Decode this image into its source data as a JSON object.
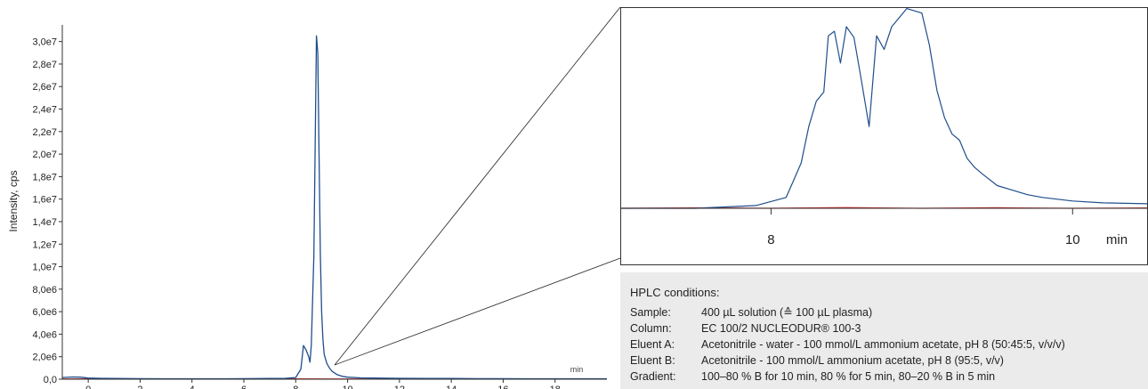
{
  "chart_data": [
    {
      "type": "line",
      "ylabel": "Intensity, cps",
      "xlabel": "",
      "x_unit_label": "min",
      "xlim": [
        -1,
        20
      ],
      "ylim": [
        0,
        31000000
      ],
      "x_ticks": [
        0,
        2,
        4,
        6,
        8,
        10,
        12,
        14,
        16,
        18
      ],
      "y_tick_labels": [
        "0,0",
        "2,0e6",
        "4,0e6",
        "6,0e6",
        "8,0e6",
        "1,0e7",
        "1,2e7",
        "1,4e7",
        "1,6e7",
        "1,8e7",
        "2,0e7",
        "2,2e7",
        "2,4e7",
        "2,6e7",
        "2,8e7",
        "3,0e7"
      ],
      "y_tick_values": [
        0,
        2000000,
        4000000,
        6000000,
        8000000,
        10000000,
        12000000,
        14000000,
        16000000,
        18000000,
        20000000,
        22000000,
        24000000,
        26000000,
        28000000,
        30000000
      ],
      "series": [
        {
          "color": "#1f4e8c",
          "x": [
            -1,
            -0.6,
            -0.3,
            0,
            0.5,
            1,
            2,
            3,
            4,
            5,
            6,
            7,
            7.6,
            8.0,
            8.2,
            8.3,
            8.4,
            8.5,
            8.55,
            8.6,
            8.7,
            8.8,
            8.85,
            8.9,
            8.95,
            9.0,
            9.05,
            9.1,
            9.2,
            9.3,
            9.4,
            9.6,
            9.8,
            10,
            10.5,
            11,
            12,
            13,
            14,
            15,
            16,
            17,
            18,
            19,
            20
          ],
          "y": [
            150000,
            200000,
            180000,
            100000,
            80000,
            60000,
            50000,
            40000,
            40000,
            40000,
            50000,
            60000,
            80000,
            150000,
            900000,
            3000000,
            2600000,
            2000000,
            1500000,
            3000000,
            11000000,
            30500000,
            29000000,
            20000000,
            11000000,
            6000000,
            3500000,
            2200000,
            1400000,
            1000000,
            700000,
            400000,
            250000,
            180000,
            120000,
            100000,
            80000,
            70000,
            60000,
            50000,
            50000,
            40000,
            40000,
            40000,
            40000
          ]
        },
        {
          "color": "#d62728",
          "x": [
            -1,
            0,
            2,
            4,
            6,
            8,
            10,
            12,
            14,
            16,
            18,
            20
          ],
          "y": [
            20000,
            30000,
            20000,
            25000,
            20000,
            30000,
            25000,
            20000,
            25000,
            20000,
            25000,
            20000
          ]
        }
      ]
    },
    {
      "type": "line",
      "xlabel": "",
      "x_unit_label": "min",
      "xlim": [
        7.0,
        10.5
      ],
      "x_ticks": [
        8,
        10
      ],
      "series": [
        {
          "color": "#1f4e8c",
          "x": [
            7.0,
            7.5,
            7.9,
            8.1,
            8.2,
            8.25,
            8.3,
            8.35,
            8.38,
            8.42,
            8.46,
            8.5,
            8.55,
            8.6,
            8.65,
            8.7,
            8.75,
            8.8,
            8.9,
            9.0,
            9.05,
            9.1,
            9.15,
            9.2,
            9.25,
            9.3,
            9.35,
            9.4,
            9.5,
            9.6,
            9.7,
            9.8,
            10.0,
            10.2,
            10.5
          ],
          "y": [
            0,
            0,
            3,
            12,
            50,
            90,
            118,
            128,
            190,
            195,
            160,
            200,
            188,
            140,
            90,
            190,
            175,
            200,
            220,
            215,
            180,
            130,
            100,
            82,
            75,
            55,
            45,
            38,
            25,
            20,
            15,
            12,
            8,
            6,
            5
          ]
        },
        {
          "color": "#d62728",
          "x": [
            7.0,
            7.5,
            8.0,
            8.5,
            9.0,
            9.5,
            10.0,
            10.5
          ],
          "y": [
            0,
            0.5,
            0,
            0.8,
            0,
            0.6,
            0,
            0.4
          ]
        }
      ]
    }
  ],
  "conditions": {
    "heading": "HPLC conditions:",
    "rows": [
      {
        "label": "Sample:",
        "value": "400 µL solution (≙ 100 µL plasma)"
      },
      {
        "label": "Column:",
        "value": "EC 100/2 NUCLEODUR® 100-3"
      },
      {
        "label": "Eluent A:",
        "value": "Acetonitrile - water - 100 mmol/L ammonium acetate, pH 8 (50:45:5, v/v/v)"
      },
      {
        "label": "Eluent B:",
        "value": "Acetonitrile - 100 mmol/L ammonium acetate, pH 8 (95:5, v/v)"
      },
      {
        "label": "Gradient:",
        "value": "100–80 % B for 10 min, 80 % for 5 min, 80–20 % B in 5 min"
      }
    ]
  }
}
